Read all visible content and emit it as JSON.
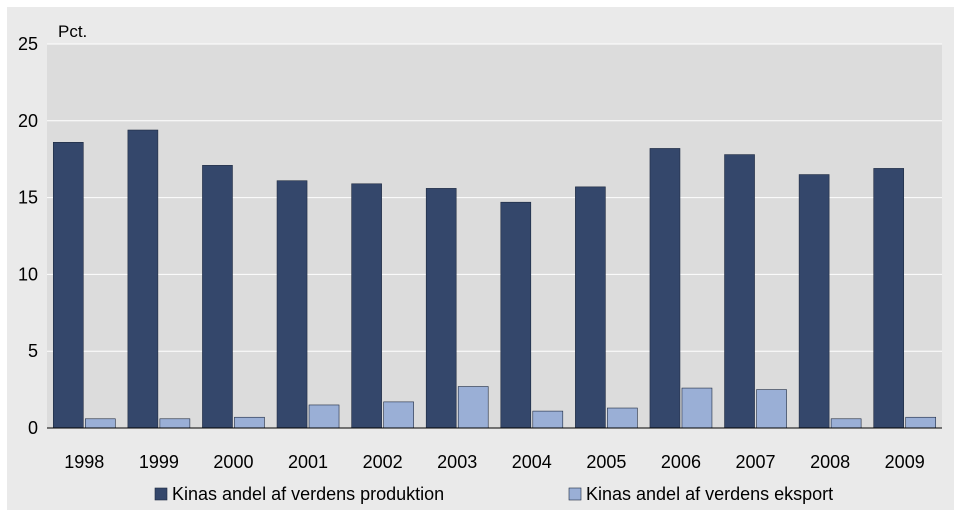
{
  "chart_data": {
    "type": "bar",
    "title": "",
    "ylabel": "Pct.",
    "xlabel": "",
    "ylim": [
      0,
      25
    ],
    "yticks": [
      0,
      5,
      10,
      15,
      20,
      25
    ],
    "grid": true,
    "legend_position": "bottom",
    "categories": [
      "1998",
      "1999",
      "2000",
      "2001",
      "2002",
      "2003",
      "2004",
      "2005",
      "2006",
      "2007",
      "2008",
      "2009"
    ],
    "series": [
      {
        "name": "Kinas andel af verdens produktion",
        "color": "#34476b",
        "values": [
          18.6,
          19.4,
          17.1,
          16.1,
          15.9,
          15.6,
          14.7,
          15.7,
          18.2,
          17.8,
          16.5,
          16.9
        ]
      },
      {
        "name": "Kinas andel af verdens eksport",
        "color": "#9aafd6",
        "values": [
          0.6,
          0.6,
          0.7,
          1.5,
          1.7,
          2.7,
          1.1,
          1.3,
          2.6,
          2.5,
          0.6,
          0.7
        ]
      }
    ],
    "colors": {
      "background": "#eaeaea",
      "plot_background": "#dcdcdc",
      "gridline": "#ffffff"
    }
  }
}
